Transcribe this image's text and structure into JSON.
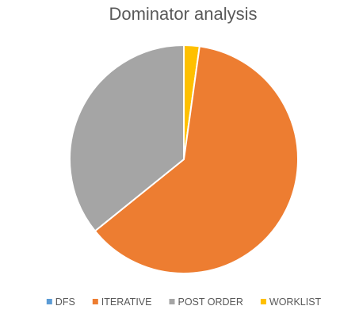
{
  "chart_data": {
    "type": "pie",
    "title": "Dominator analysis",
    "categories": [
      "DFS",
      "ITERATIVE",
      "POST ORDER",
      "WORKLIST"
    ],
    "values": [
      0.0,
      62.0,
      35.8,
      2.2
    ],
    "colors": [
      "#5B9BD5",
      "#ED7D31",
      "#A5A5A5",
      "#FFC000"
    ],
    "start_category": "WORKLIST",
    "direction": "clockwise",
    "legend": "bottom",
    "data_labels": false
  }
}
